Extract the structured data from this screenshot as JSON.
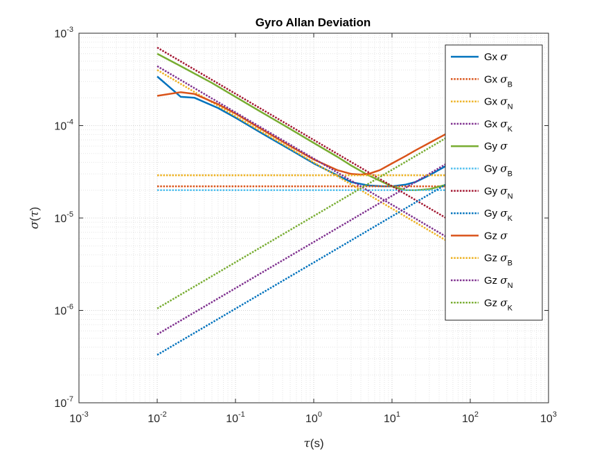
{
  "chart_data": {
    "type": "line",
    "title": "Gyro Allan Deviation",
    "xlabel": {
      "symbol": "τ",
      "suffix": "(s)"
    },
    "ylabel": {
      "symbol": "σ",
      "suffix": "(",
      "arg": "τ",
      "close": ")"
    },
    "x_scale": "log",
    "y_scale": "log",
    "xlim": [
      0.001,
      1000
    ],
    "ylim": [
      1e-07,
      0.001
    ],
    "x_ticks": [
      {
        "base": "10",
        "exp": "-3",
        "value": 0.001
      },
      {
        "base": "10",
        "exp": "-2",
        "value": 0.01
      },
      {
        "base": "10",
        "exp": "-1",
        "value": 0.1
      },
      {
        "base": "10",
        "exp": "0",
        "value": 1
      },
      {
        "base": "10",
        "exp": "1",
        "value": 10
      },
      {
        "base": "10",
        "exp": "2",
        "value": 100
      },
      {
        "base": "10",
        "exp": "3",
        "value": 1000
      }
    ],
    "y_ticks": [
      {
        "base": "10",
        "exp": "-7",
        "value": 1e-07
      },
      {
        "base": "10",
        "exp": "-6",
        "value": 1e-06
      },
      {
        "base": "10",
        "exp": "-5",
        "value": 1e-05
      },
      {
        "base": "10",
        "exp": "-4",
        "value": 0.0001
      },
      {
        "base": "10",
        "exp": "-3",
        "value": 0.001
      }
    ],
    "grid": true,
    "minor_grid": true,
    "legend_position": "top-right",
    "series": [
      {
        "label": "Gx",
        "sym": "σ",
        "sub": "",
        "color": "#0072BD",
        "style": "solid",
        "x": [
          0.01,
          0.02,
          0.03,
          0.06,
          0.1,
          0.2,
          0.5,
          1,
          2,
          3,
          5,
          8,
          10,
          15,
          20,
          30,
          50,
          100
        ],
        "y": [
          0.00034,
          0.000205,
          0.0002,
          0.000155,
          0.000122,
          8.6e-05,
          5.5e-05,
          3.9e-05,
          2.9e-05,
          2.45e-05,
          2.25e-05,
          2.2e-05,
          2.2e-05,
          2.3e-05,
          2.45e-05,
          2.9e-05,
          3.7e-05,
          5.2e-05
        ]
      },
      {
        "label": "Gx",
        "sym": "σ",
        "sub": "B",
        "color": "#D95319",
        "style": "dotted",
        "x": [
          0.01,
          100
        ],
        "y": [
          2.2e-05,
          2.2e-05
        ]
      },
      {
        "label": "Gx",
        "sym": "σ",
        "sub": "N",
        "color": "#EDB120",
        "style": "dotted",
        "x": [
          0.01,
          100
        ],
        "y": [
          0.0004,
          4e-06
        ]
      },
      {
        "label": "Gx",
        "sym": "σ",
        "sub": "K",
        "color": "#7E2F8E",
        "style": "dotted",
        "x": [
          0.01,
          100
        ],
        "y": [
          5.5e-07,
          5.5e-05
        ]
      },
      {
        "label": "Gy",
        "sym": "σ",
        "sub": "",
        "color": "#77AC30",
        "style": "solid",
        "x": [
          0.01,
          0.02,
          0.05,
          0.1,
          0.2,
          0.5,
          1,
          2,
          3,
          5,
          8,
          10,
          15,
          20,
          30,
          50,
          100
        ],
        "y": [
          0.0006,
          0.00044,
          0.00029,
          0.000205,
          0.000145,
          9.2e-05,
          6.5e-05,
          4.6e-05,
          3.7e-05,
          2.9e-05,
          2.4e-05,
          2.2e-05,
          2e-05,
          2e-05,
          2.05e-05,
          2.3e-05,
          2.8e-05
        ]
      },
      {
        "label": "Gy",
        "sym": "σ",
        "sub": "B",
        "color": "#4DBEEE",
        "style": "dotted",
        "x": [
          0.01,
          100
        ],
        "y": [
          2e-05,
          2e-05
        ]
      },
      {
        "label": "Gy",
        "sym": "σ",
        "sub": "N",
        "color": "#A2142F",
        "style": "dotted",
        "x": [
          0.01,
          100
        ],
        "y": [
          0.0007,
          7e-06
        ]
      },
      {
        "label": "Gy",
        "sym": "σ",
        "sub": "K",
        "color": "#0072BD",
        "style": "dotted",
        "x": [
          0.01,
          100
        ],
        "y": [
          3.3e-07,
          3.3e-05
        ]
      },
      {
        "label": "Gz",
        "sym": "σ",
        "sub": "",
        "color": "#D95319",
        "style": "solid",
        "x": [
          0.01,
          0.02,
          0.03,
          0.06,
          0.1,
          0.2,
          0.5,
          1,
          2,
          3,
          4,
          5,
          7,
          10,
          15,
          20,
          30,
          50,
          100
        ],
        "y": [
          0.00021,
          0.00023,
          0.00022,
          0.00017,
          0.000135,
          9.5e-05,
          6e-05,
          4.3e-05,
          3.3e-05,
          3e-05,
          2.95e-05,
          3e-05,
          3.3e-05,
          3.9e-05,
          4.7e-05,
          5.4e-05,
          6.5e-05,
          8.2e-05,
          0.000115
        ]
      },
      {
        "label": "Gz",
        "sym": "σ",
        "sub": "B",
        "color": "#EDB120",
        "style": "dotted",
        "x": [
          0.01,
          100
        ],
        "y": [
          2.9e-05,
          2.9e-05
        ]
      },
      {
        "label": "Gz",
        "sym": "σ",
        "sub": "N",
        "color": "#7E2F8E",
        "style": "dotted",
        "x": [
          0.01,
          100
        ],
        "y": [
          0.00044,
          4.4e-06
        ]
      },
      {
        "label": "Gz",
        "sym": "σ",
        "sub": "K",
        "color": "#77AC30",
        "style": "dotted",
        "x": [
          0.01,
          100
        ],
        "y": [
          1.05e-06,
          0.000105
        ]
      }
    ]
  }
}
